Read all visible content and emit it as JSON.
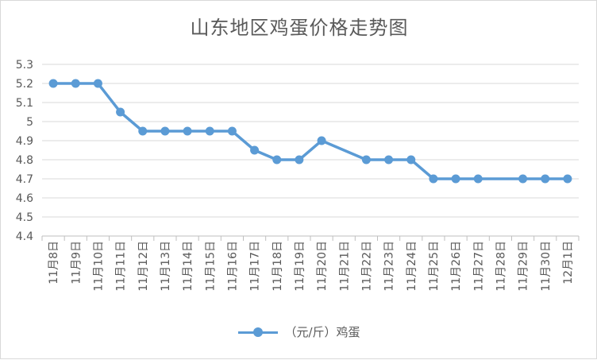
{
  "chart_data": {
    "type": "line",
    "title": "山东地区鸡蛋价格走势图",
    "categories": [
      "11月8日",
      "11月9日",
      "11月10日",
      "11月11日",
      "11月12日",
      "11月13日",
      "11月14日",
      "11月15日",
      "11月16日",
      "11月17日",
      "11月18日",
      "11月19日",
      "11月20日",
      "11月21日",
      "11月22日",
      "11月23日",
      "11月24日",
      "11月25日",
      "11月26日",
      "11月27日",
      "11月28日",
      "11月29日",
      "11月30日",
      "12月1日"
    ],
    "series": [
      {
        "name": "（元/斤）鸡蛋",
        "color": "#5b9bd5",
        "values": [
          5.2,
          5.2,
          5.2,
          5.05,
          4.95,
          4.95,
          4.95,
          4.95,
          4.95,
          4.85,
          4.8,
          4.8,
          4.9,
          null,
          4.8,
          4.8,
          4.8,
          4.7,
          4.7,
          4.7,
          null,
          4.7,
          4.7,
          4.7
        ]
      }
    ],
    "ylim": [
      4.4,
      5.3
    ],
    "yticks": [
      "4.4",
      "4.5",
      "4.6",
      "4.7",
      "4.8",
      "4.9",
      "5",
      "5.1",
      "5.2",
      "5.3"
    ],
    "grid": true,
    "legend_position": "bottom"
  }
}
